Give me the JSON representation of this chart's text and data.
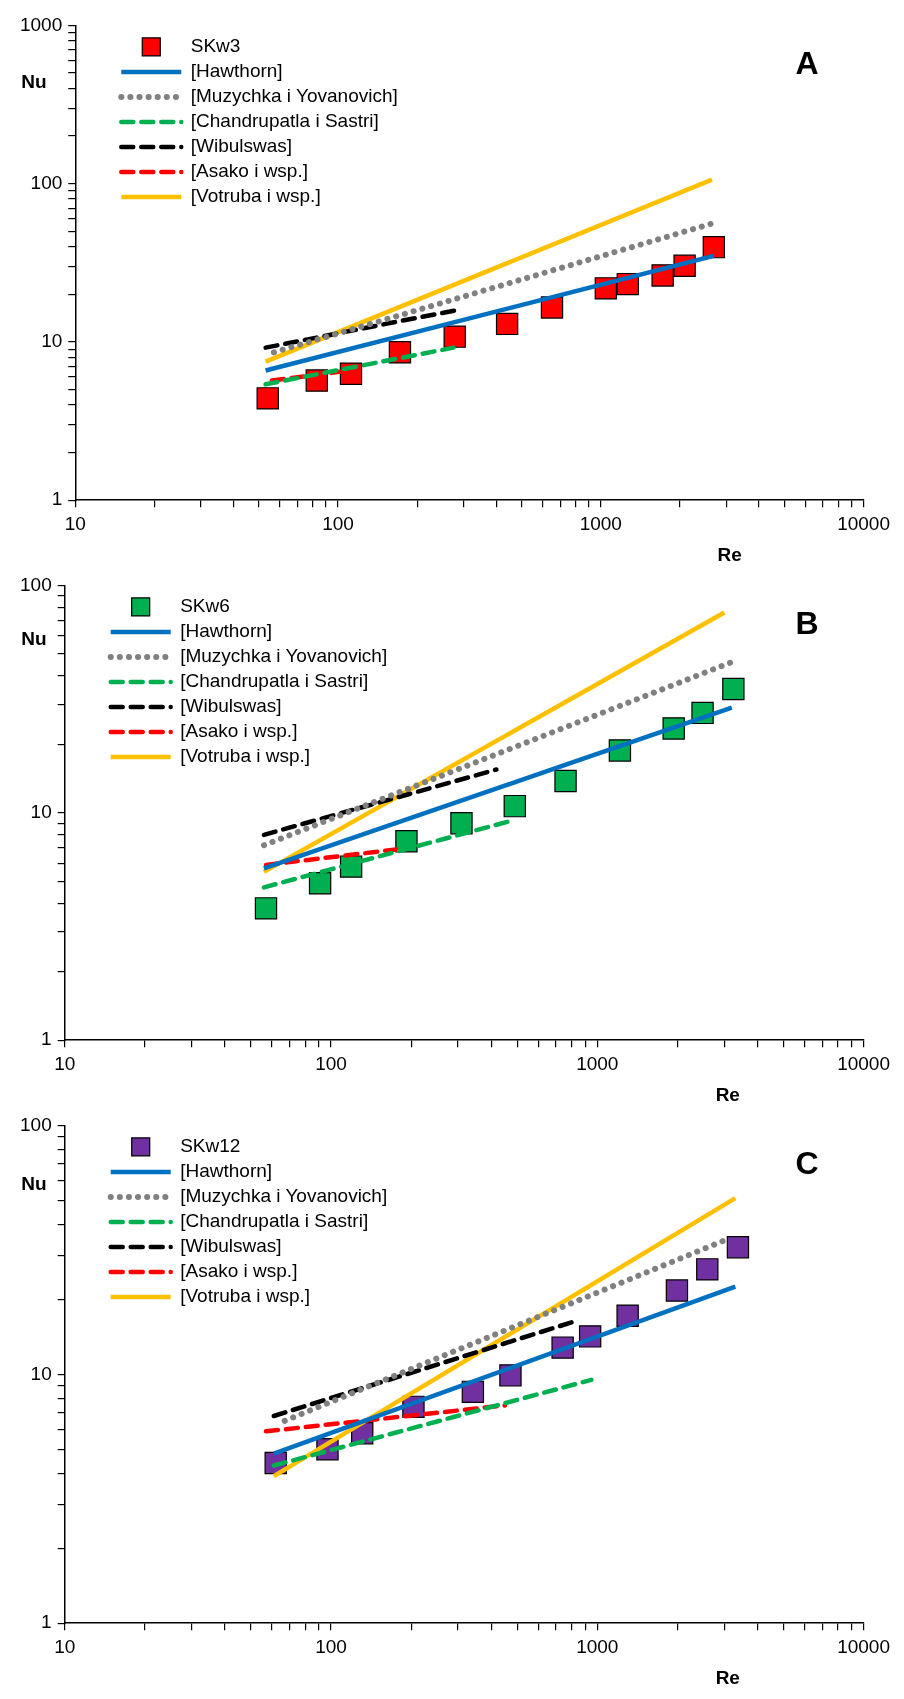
{
  "chart_data": [
    {
      "type": "line",
      "annotations": [
        "A"
      ],
      "xlabel": "Re",
      "ylabel": "Nu",
      "log": "xy",
      "legend": "top left",
      "xlim": [
        10,
        10000
      ],
      "ylim": [
        1,
        1000
      ],
      "xticks": [
        10,
        {
          "value": 20,
          "label": null
        },
        {
          "value": 30,
          "label": null
        },
        {
          "value": 40,
          "label": null
        },
        {
          "value": 50,
          "label": null
        },
        {
          "value": 60,
          "label": null
        },
        {
          "value": 70,
          "label": null
        },
        {
          "value": 80,
          "label": null
        },
        {
          "value": 90,
          "label": null
        },
        100,
        {
          "value": 200,
          "label": null
        },
        {
          "value": 300,
          "label": null
        },
        {
          "value": 400,
          "label": null
        },
        {
          "value": 500,
          "label": null
        },
        {
          "value": 600,
          "label": null
        },
        {
          "value": 700,
          "label": null
        },
        {
          "value": 800,
          "label": null
        },
        {
          "value": 900,
          "label": null
        },
        1000,
        {
          "value": 2000,
          "label": null
        },
        {
          "value": 3000,
          "label": null
        },
        {
          "value": 4000,
          "label": null
        },
        {
          "value": 5000,
          "label": null
        },
        {
          "value": 6000,
          "label": null
        },
        {
          "value": 7000,
          "label": null
        },
        {
          "value": 8000,
          "label": null
        },
        {
          "value": 9000,
          "label": null
        },
        10000
      ],
      "yticks": [
        1,
        {
          "value": 2,
          "label": null
        },
        {
          "value": 3,
          "label": null
        },
        {
          "value": 4,
          "label": null
        },
        {
          "value": 5,
          "label": null
        },
        {
          "value": 6,
          "label": null
        },
        {
          "value": 7,
          "label": null
        },
        {
          "value": 8,
          "label": null
        },
        {
          "value": 9,
          "label": null
        },
        10,
        {
          "value": 20,
          "label": null
        },
        {
          "value": 30,
          "label": null
        },
        {
          "value": 40,
          "label": null
        },
        {
          "value": 50,
          "label": null
        },
        {
          "value": 60,
          "label": null
        },
        {
          "value": 70,
          "label": null
        },
        {
          "value": 80,
          "label": null
        },
        {
          "value": 90,
          "label": null
        },
        100,
        {
          "value": 200,
          "label": null
        },
        {
          "value": 300,
          "label": null
        },
        {
          "value": 400,
          "label": null
        },
        {
          "value": 500,
          "label": null
        },
        {
          "value": 600,
          "label": null
        },
        {
          "value": 700,
          "label": null
        },
        {
          "value": 800,
          "label": null
        },
        {
          "value": 900,
          "label": null
        },
        1000
      ],
      "series": [
        {
          "name": "SKw3",
          "type": "scatter",
          "marker": "square",
          "color": "#ff0000",
          "x": [
            54,
            83,
            112,
            172,
            278,
            440,
            652,
            1045,
            1267,
            1719,
            2084,
            2692
          ],
          "values": [
            4.4,
            5.7,
            6.3,
            8.6,
            10.8,
            13,
            16.5,
            21.8,
            23.2,
            26.3,
            30.3,
            39.7
          ]
        },
        {
          "name": "[Hawthorn]",
          "type": "line",
          "line_style": "solid",
          "color": "#0070c0",
          "x": [
            53,
            2692
          ],
          "values": [
            6.6,
            35
          ]
        },
        {
          "name": "[Muzychka i Yovanovich]",
          "type": "line",
          "line_style": "dotted",
          "color": "#808080",
          "x": [
            57,
            2750
          ],
          "values": [
            8.6,
            57
          ]
        },
        {
          "name": "[Chandrupatla i Sastri]",
          "type": "line",
          "line_style": "dashed",
          "color": "#00b050",
          "x": [
            53,
            275
          ],
          "values": [
            5.4,
            9.2
          ]
        },
        {
          "name": "[Wibulswas]",
          "type": "line",
          "line_style": "dashed",
          "color": "#000000",
          "x": [
            53,
            163,
            280
          ],
          "values": [
            9.2,
            13.3,
            15.8
          ]
        },
        {
          "name": "[Asako i wsp.]",
          "type": "line",
          "line_style": "dashed",
          "color": "#ff0000",
          "x": [
            56,
            111
          ],
          "values": [
            5.7,
            6.6
          ]
        },
        {
          "name": "[Votruba i wsp.]",
          "type": "line",
          "line_style": "solid",
          "color": "#ffc000",
          "x": [
            53,
            2650
          ],
          "values": [
            7.5,
            106
          ]
        }
      ]
    },
    {
      "type": "line",
      "annotations": [
        "B"
      ],
      "xlabel": "Re",
      "ylabel": "Nu",
      "log": "xy",
      "legend": "top left",
      "xlim": [
        10,
        10000
      ],
      "ylim": [
        1,
        100
      ],
      "xticks": [
        10,
        {
          "value": 20,
          "label": null
        },
        {
          "value": 30,
          "label": null
        },
        {
          "value": 40,
          "label": null
        },
        {
          "value": 50,
          "label": null
        },
        {
          "value": 60,
          "label": null
        },
        {
          "value": 70,
          "label": null
        },
        {
          "value": 80,
          "label": null
        },
        {
          "value": 90,
          "label": null
        },
        100,
        {
          "value": 200,
          "label": null
        },
        {
          "value": 300,
          "label": null
        },
        {
          "value": 400,
          "label": null
        },
        {
          "value": 500,
          "label": null
        },
        {
          "value": 600,
          "label": null
        },
        {
          "value": 700,
          "label": null
        },
        {
          "value": 800,
          "label": null
        },
        {
          "value": 900,
          "label": null
        },
        1000,
        {
          "value": 2000,
          "label": null
        },
        {
          "value": 3000,
          "label": null
        },
        {
          "value": 4000,
          "label": null
        },
        {
          "value": 5000,
          "label": null
        },
        {
          "value": 6000,
          "label": null
        },
        {
          "value": 7000,
          "label": null
        },
        {
          "value": 8000,
          "label": null
        },
        {
          "value": 9000,
          "label": null
        },
        10000
      ],
      "yticks": [
        1,
        {
          "value": 2,
          "label": null
        },
        {
          "value": 3,
          "label": null
        },
        {
          "value": 4,
          "label": null
        },
        {
          "value": 5,
          "label": null
        },
        {
          "value": 6,
          "label": null
        },
        {
          "value": 7,
          "label": null
        },
        {
          "value": 8,
          "label": null
        },
        {
          "value": 9,
          "label": null
        },
        10,
        {
          "value": 20,
          "label": null
        },
        {
          "value": 30,
          "label": null
        },
        {
          "value": 40,
          "label": null
        },
        {
          "value": 50,
          "label": null
        },
        {
          "value": 60,
          "label": null
        },
        {
          "value": 70,
          "label": null
        },
        {
          "value": 80,
          "label": null
        },
        {
          "value": 90,
          "label": null
        },
        100
      ],
      "series": [
        {
          "name": "SKw6",
          "type": "scatter",
          "marker": "square",
          "color": "#00b050",
          "x": [
            57,
            91,
            119,
            192,
            309,
            490,
            760,
            1216,
            1936,
            2485,
            3243
          ],
          "values": [
            3.8,
            4.9,
            5.8,
            7.5,
            9.0,
            10.7,
            13.8,
            18.8,
            23.5,
            27.5,
            35
          ]
        },
        {
          "name": "[Hawthorn]",
          "type": "line",
          "line_style": "solid",
          "color": "#0070c0",
          "x": [
            56,
            3200
          ],
          "values": [
            5.7,
            29
          ]
        },
        {
          "name": "[Muzychka i Yovanovich]",
          "type": "line",
          "line_style": "dotted",
          "color": "#808080",
          "x": [
            56,
            3200
          ],
          "values": [
            7.2,
            46
          ]
        },
        {
          "name": "[Chandrupatla i Sastri]",
          "type": "line",
          "line_style": "dashed",
          "color": "#00b050",
          "x": [
            56,
            488
          ],
          "values": [
            4.7,
            9.3
          ]
        },
        {
          "name": "[Wibulswas]",
          "type": "line",
          "line_style": "dashed",
          "color": "#000000",
          "x": [
            56,
            418
          ],
          "values": [
            8.0,
            15.5
          ]
        },
        {
          "name": "[Asako i wsp.]",
          "type": "line",
          "line_style": "dashed",
          "color": "#ff0000",
          "x": [
            57,
            176
          ],
          "values": [
            5.9,
            6.9
          ]
        },
        {
          "name": "[Votruba i wsp.]",
          "type": "line",
          "line_style": "solid",
          "color": "#ffc000",
          "x": [
            56,
            3000
          ],
          "values": [
            5.5,
            76
          ]
        }
      ]
    },
    {
      "type": "line",
      "annotations": [
        "C"
      ],
      "xlabel": "Re",
      "ylabel": "Nu",
      "log": "xy",
      "legend": "top left",
      "xlim": [
        10,
        10000
      ],
      "ylim": [
        1,
        100
      ],
      "xticks": [
        10,
        {
          "value": 20,
          "label": null
        },
        {
          "value": 30,
          "label": null
        },
        {
          "value": 40,
          "label": null
        },
        {
          "value": 50,
          "label": null
        },
        {
          "value": 60,
          "label": null
        },
        {
          "value": 70,
          "label": null
        },
        {
          "value": 80,
          "label": null
        },
        {
          "value": 90,
          "label": null
        },
        100,
        {
          "value": 200,
          "label": null
        },
        {
          "value": 300,
          "label": null
        },
        {
          "value": 400,
          "label": null
        },
        {
          "value": 500,
          "label": null
        },
        {
          "value": 600,
          "label": null
        },
        {
          "value": 700,
          "label": null
        },
        {
          "value": 800,
          "label": null
        },
        {
          "value": 900,
          "label": null
        },
        1000,
        {
          "value": 2000,
          "label": null
        },
        {
          "value": 3000,
          "label": null
        },
        {
          "value": 4000,
          "label": null
        },
        {
          "value": 5000,
          "label": null
        },
        {
          "value": 6000,
          "label": null
        },
        {
          "value": 7000,
          "label": null
        },
        {
          "value": 8000,
          "label": null
        },
        {
          "value": 9000,
          "label": null
        },
        10000
      ],
      "yticks": [
        1,
        {
          "value": 2,
          "label": null
        },
        {
          "value": 3,
          "label": null
        },
        {
          "value": 4,
          "label": null
        },
        {
          "value": 5,
          "label": null
        },
        {
          "value": 6,
          "label": null
        },
        {
          "value": 7,
          "label": null
        },
        {
          "value": 8,
          "label": null
        },
        {
          "value": 9,
          "label": null
        },
        10,
        {
          "value": 20,
          "label": null
        },
        {
          "value": 30,
          "label": null
        },
        {
          "value": 40,
          "label": null
        },
        {
          "value": 50,
          "label": null
        },
        {
          "value": 60,
          "label": null
        },
        {
          "value": 70,
          "label": null
        },
        {
          "value": 80,
          "label": null
        },
        {
          "value": 90,
          "label": null
        },
        100
      ],
      "series": [
        {
          "name": "SKw12",
          "type": "scatter",
          "marker": "square",
          "color": "#7030a0",
          "x": [
            62,
            97,
            131,
            204,
            341,
            472,
            741,
            940,
            1300,
            1991,
            2589,
            3374
          ],
          "values": [
            4.4,
            5.0,
            5.8,
            7.4,
            8.5,
            9.9,
            12.8,
            14.2,
            17.2,
            21.7,
            26.4,
            32.4
          ]
        },
        {
          "name": "[Hawthorn]",
          "type": "line",
          "line_style": "solid",
          "color": "#0070c0",
          "x": [
            61,
            3300
          ],
          "values": [
            4.8,
            22.5
          ]
        },
        {
          "name": "[Muzychka i Yovanovich]",
          "type": "line",
          "line_style": "dotted",
          "color": "#808080",
          "x": [
            67,
            3100
          ],
          "values": [
            6.5,
            35
          ]
        },
        {
          "name": "[Chandrupatla i Sastri]",
          "type": "line",
          "line_style": "dashed",
          "color": "#00b050",
          "x": [
            61,
            950
          ],
          "values": [
            4.3,
            9.5
          ]
        },
        {
          "name": "[Wibulswas]",
          "type": "line",
          "line_style": "dashed",
          "color": "#000000",
          "x": [
            61,
            850
          ],
          "values": [
            6.8,
            16.5
          ]
        },
        {
          "name": "[Asako i wsp.]",
          "type": "line",
          "line_style": "dashed",
          "color": "#ff0000",
          "x": [
            57,
            450
          ],
          "values": [
            5.9,
            7.5
          ]
        },
        {
          "name": "[Votruba i wsp.]",
          "type": "line",
          "line_style": "solid",
          "color": "#ffc000",
          "x": [
            61,
            3300
          ],
          "values": [
            3.9,
            51
          ]
        }
      ]
    }
  ]
}
